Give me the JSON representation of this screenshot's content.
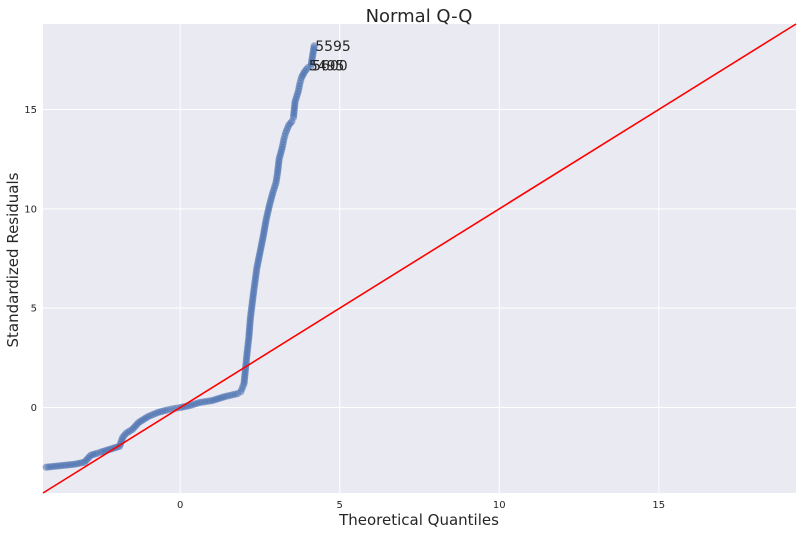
{
  "chart_data": {
    "type": "scatter",
    "title": "Normal Q-Q",
    "xlabel": "Theoretical Quantiles",
    "ylabel": "Standardized Residuals",
    "xlim": [
      -4.3,
      19.3
    ],
    "ylim": [
      -4.3,
      19.3
    ],
    "xticks": [
      0,
      5,
      10,
      15
    ],
    "yticks": [
      0,
      5,
      10,
      15
    ],
    "grid": true,
    "colors": {
      "background": "#EAEAF2",
      "grid": "#FFFFFF",
      "points": "#4C72B0",
      "reference_line": "#FF0000"
    },
    "series": [
      {
        "kind": "points",
        "x": [
          -4.2,
          -3.9,
          -3.6,
          -3.3,
          -3.0,
          -2.8,
          -2.6,
          -2.5,
          -2.3,
          -2.1,
          -1.9,
          -1.8,
          -1.7,
          -1.5,
          -1.3,
          -1.0,
          -0.7,
          -0.4,
          -0.2,
          0.0,
          0.3,
          0.6,
          1.0,
          1.4,
          1.8,
          1.9,
          2.0,
          2.05,
          2.1,
          2.15,
          2.2,
          2.3,
          2.4,
          2.5,
          2.6,
          2.7,
          2.8,
          2.9,
          3.0,
          3.05,
          3.1,
          3.2,
          3.25,
          3.3,
          3.4,
          3.5,
          3.55,
          3.6,
          3.7,
          3.75,
          3.8,
          3.9,
          4.0,
          4.1,
          4.2
        ],
        "y": [
          -3.0,
          -2.95,
          -2.9,
          -2.85,
          -2.75,
          -2.4,
          -2.3,
          -2.25,
          -2.15,
          -2.05,
          -1.95,
          -1.5,
          -1.3,
          -1.1,
          -0.75,
          -0.45,
          -0.25,
          -0.12,
          -0.05,
          0.0,
          0.1,
          0.25,
          0.35,
          0.55,
          0.7,
          0.8,
          1.2,
          2.0,
          2.8,
          3.5,
          4.5,
          5.8,
          7.0,
          7.8,
          8.6,
          9.5,
          10.2,
          10.8,
          11.3,
          11.8,
          12.5,
          13.1,
          13.5,
          13.8,
          14.2,
          14.4,
          14.6,
          15.4,
          15.9,
          16.3,
          16.6,
          16.9,
          17.1,
          17.2,
          18.2
        ]
      },
      {
        "kind": "reference",
        "x": [
          -4.3,
          19.3
        ],
        "y": [
          -4.3,
          19.3
        ]
      }
    ],
    "annotations": [
      {
        "text": "5595",
        "x": 4.2,
        "y": 18.2
      },
      {
        "text": "5495",
        "x": 4.0,
        "y": 17.2
      },
      {
        "text": "5600",
        "x": 4.1,
        "y": 17.2
      }
    ]
  }
}
